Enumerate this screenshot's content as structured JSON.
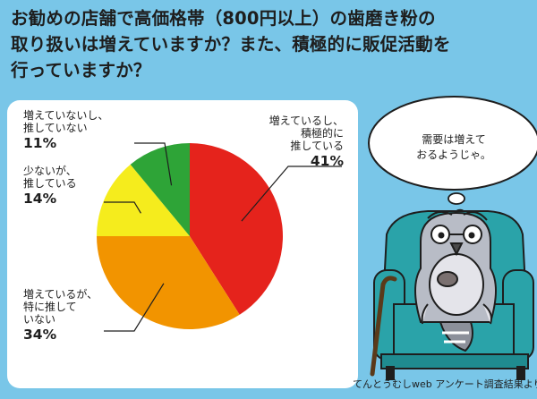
{
  "title_lines": [
    "お勧めの店舗で高価格帯（800円以上）の歯磨き粉の",
    "取り扱いは増えていますか？また、積極的に販促活動を",
    "行っていますか？"
  ],
  "chart_data": {
    "type": "pie",
    "slices": [
      {
        "label_lines": [
          "増えているし、",
          "積極的に",
          "推している"
        ],
        "value": 41,
        "pct_label": "41%",
        "color": "#e5231c"
      },
      {
        "label_lines": [
          "増えているが、",
          "特に推して",
          "いない"
        ],
        "value": 34,
        "pct_label": "34%",
        "color": "#f29400"
      },
      {
        "label_lines": [
          "少ないが、",
          "推している"
        ],
        "value": 14,
        "pct_label": "14%",
        "color": "#f5ec1d"
      },
      {
        "label_lines": [
          "増えていないし、",
          "推していない"
        ],
        "value": 11,
        "pct_label": "11%",
        "color": "#2ea437"
      }
    ]
  },
  "speech_bubble": {
    "lines": [
      "需要は増えて",
      "おるようじゃ。"
    ]
  },
  "source": "てんとうむしweb アンケート調査結果より"
}
